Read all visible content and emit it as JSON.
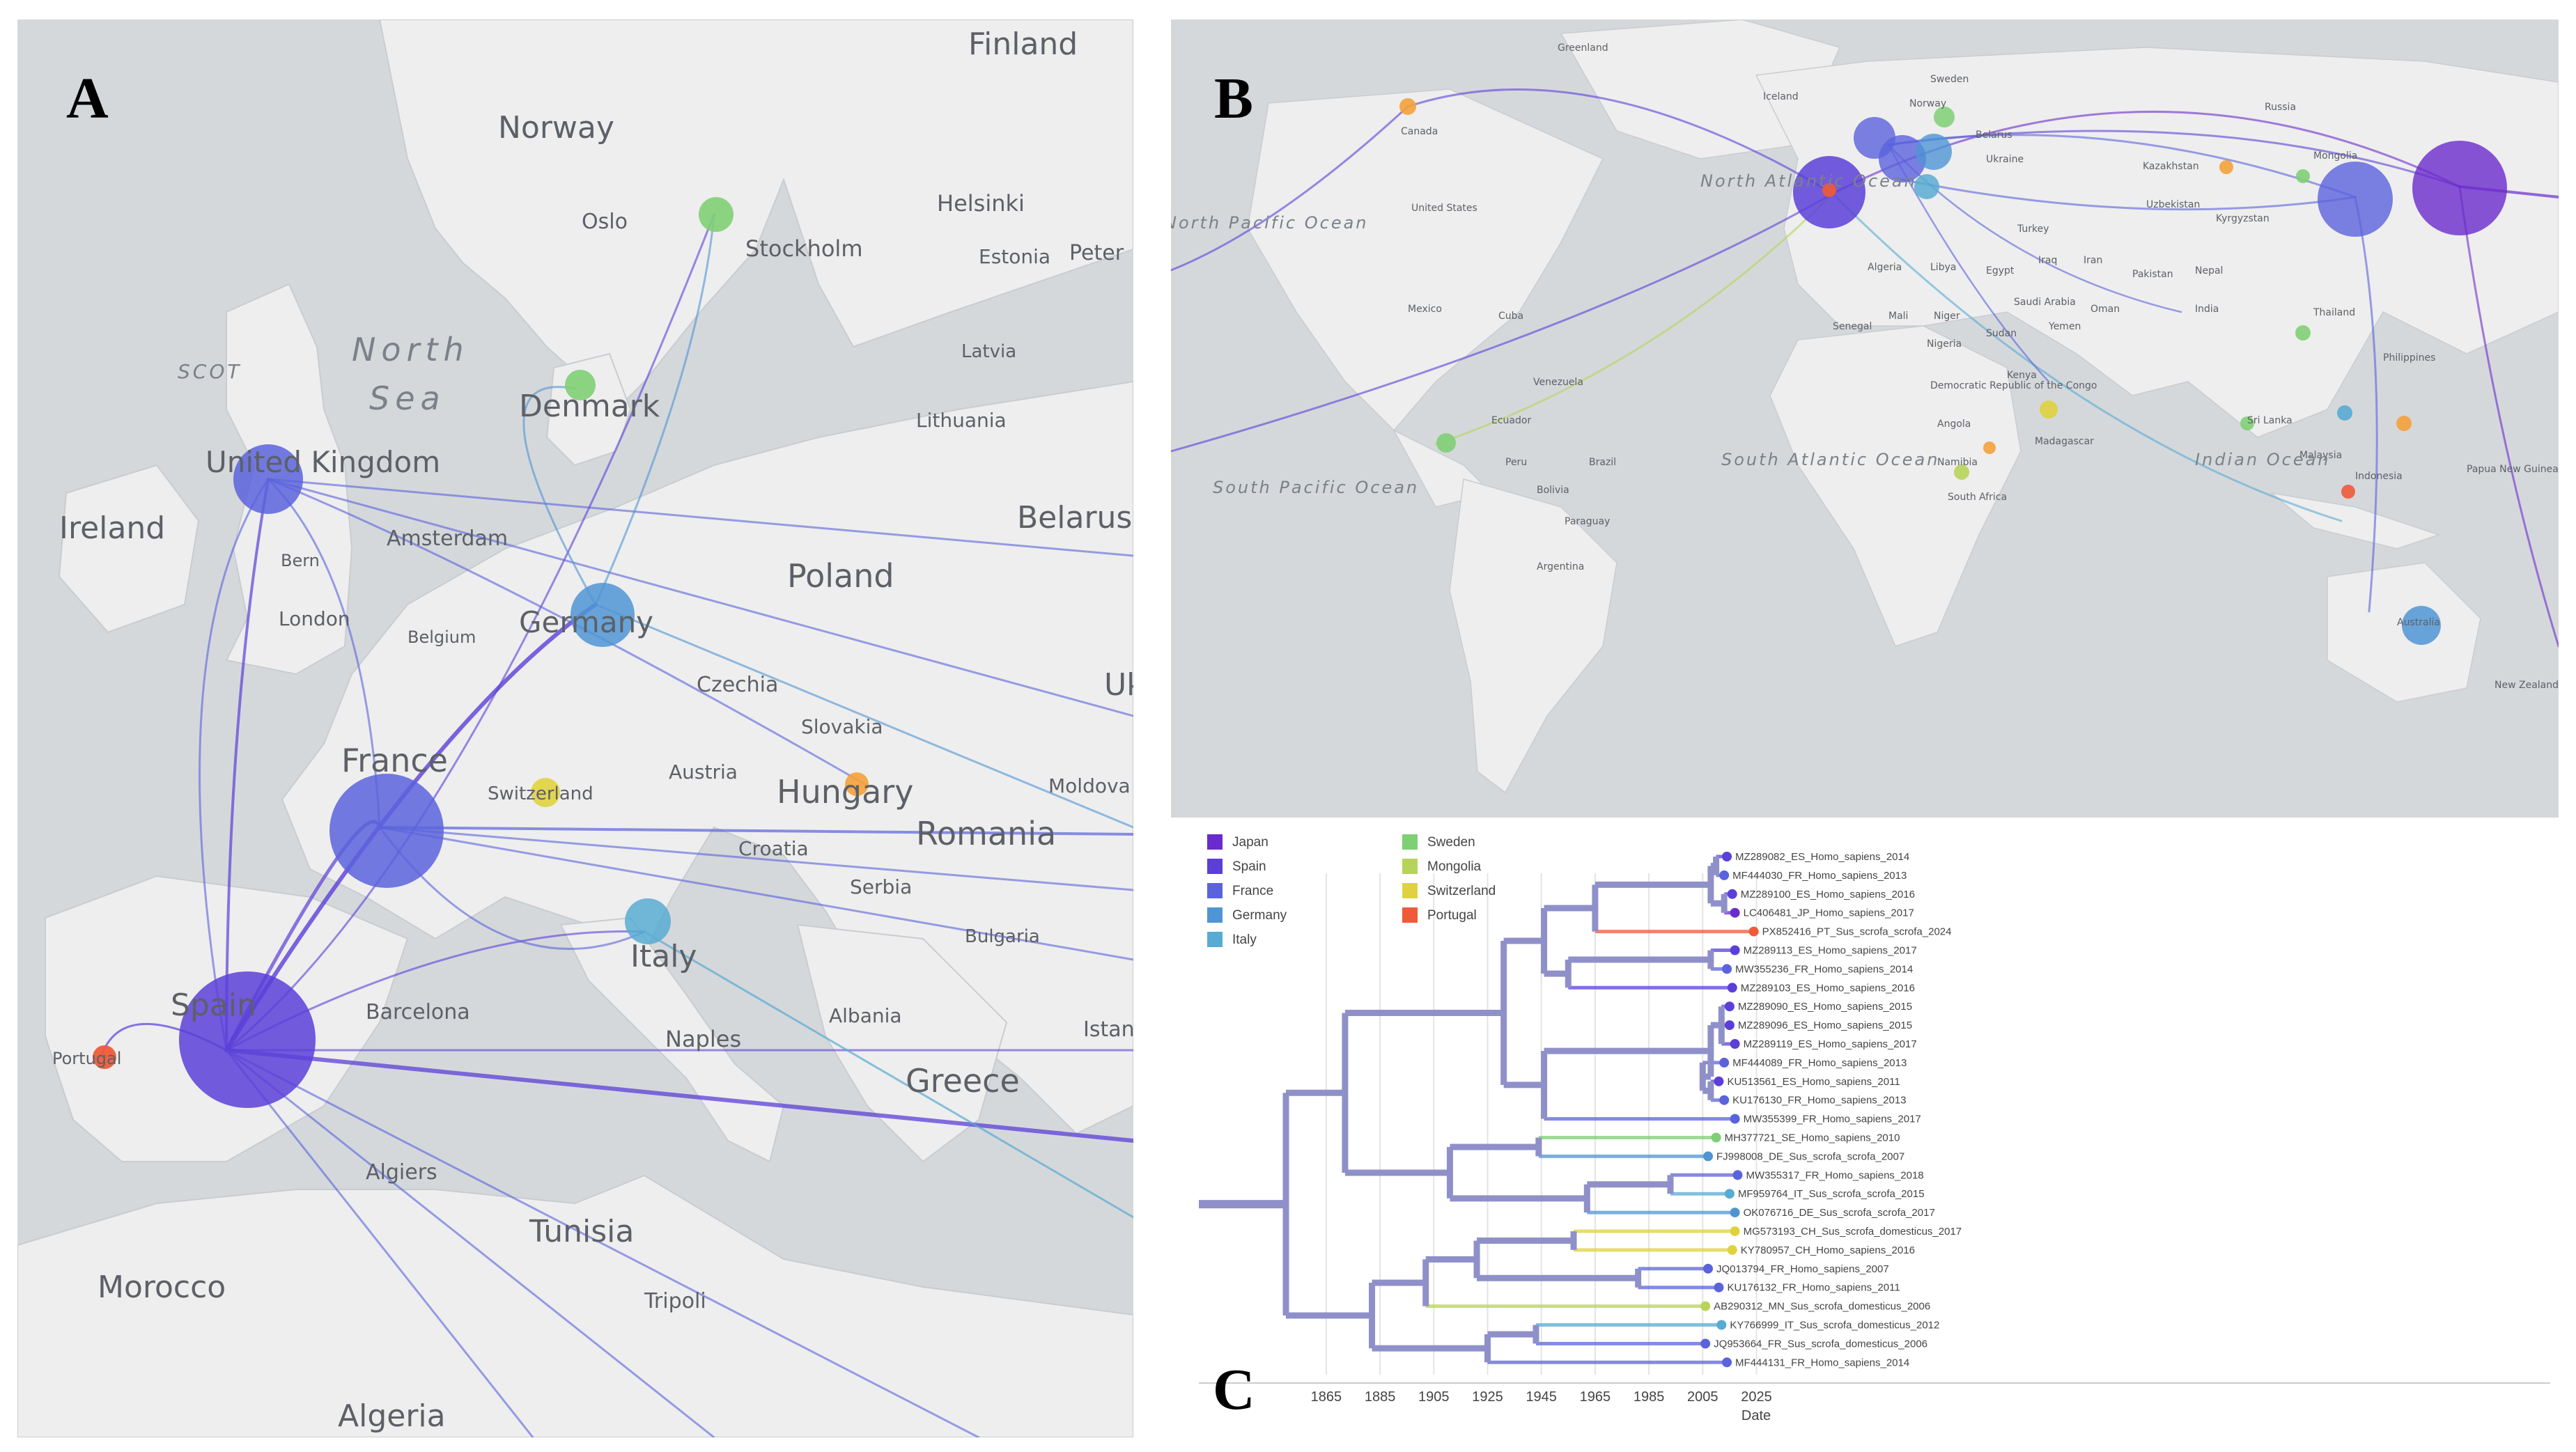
{
  "panels": {
    "a": {
      "letter": "A"
    },
    "b": {
      "letter": "B"
    },
    "c": {
      "letter": "C"
    }
  },
  "colors": {
    "Japan": "#6a2bcc",
    "Spain": "#5b3fd8",
    "France": "#5a63dc",
    "Germany": "#4f95d4",
    "Italy": "#58abd2",
    "Sweden": "#7fcf74",
    "Mongolia": "#b7d35a",
    "Switzerland": "#e0d23e",
    "Portugal": "#ee5a3a",
    "Hungary": "#f4a13a",
    "water": "#d5d8db",
    "land": "#eeeeee",
    "branch": "#8f90c9"
  },
  "map_a": {
    "countries": [
      "Finland",
      "Norway",
      "Denmark",
      "United Kingdom",
      "Ireland",
      "Poland",
      "Belarus",
      "Germany",
      "Czechia",
      "Slovakia",
      "France",
      "Austria",
      "Hungary",
      "Moldova",
      "Romania",
      "Switzerland",
      "Croatia",
      "Serbia",
      "Italy",
      "Bulgaria",
      "Albania",
      "Spain",
      "Portugal",
      "Greece",
      "Tunisia",
      "Morocco",
      "Algeria",
      "Estonia",
      "Latvia",
      "Lithuania",
      "Uk"
    ],
    "cities": [
      "Oslo",
      "Helsinki",
      "Stockholm",
      "Peter",
      "Amsterdam",
      "London",
      "Belgium",
      "Barcelona",
      "Naples",
      "Algiers",
      "Tripoli",
      "Istanbul",
      "Bern"
    ],
    "seas": [
      "North",
      "Sea",
      "SCOT"
    ]
  },
  "map_b": {
    "countries": [
      "Greenland",
      "Iceland",
      "Sweden",
      "Norway",
      "Russia",
      "Belarus",
      "Ukraine",
      "Kazakhstan",
      "Mongolia",
      "Uzbekistan",
      "Kyrgyzstan",
      "Turkey",
      "Iraq",
      "Iran",
      "Pakistan",
      "Nepal",
      "India",
      "Thailand",
      "Philippines",
      "Sri Lanka",
      "Malaysia",
      "Indonesia",
      "Papua New Guinea",
      "Australia",
      "New Zealand",
      "Canada",
      "United States",
      "Mexico",
      "Cuba",
      "Venezuela",
      "Ecuador",
      "Peru",
      "Brazil",
      "Bolivia",
      "Paraguay",
      "Argentina",
      "Algeria",
      "Libya",
      "Egypt",
      "Saudi Arabia",
      "Oman",
      "Yemen",
      "Sudan",
      "Niger",
      "Mali",
      "Senegal",
      "Nigeria",
      "Democratic Republic of the Congo",
      "Angola",
      "Namibia",
      "South Africa",
      "Kenya",
      "Madagascar"
    ],
    "oceans": [
      "North Atlantic Ocean",
      "South Atlantic Ocean",
      "Indian Ocean",
      "North Pacific Ocean",
      "South Pacific Ocean"
    ]
  },
  "tree": {
    "legend": [
      {
        "label": "Japan",
        "color": "#6a2bcc"
      },
      {
        "label": "Spain",
        "color": "#5b3fd8"
      },
      {
        "label": "France",
        "color": "#5a63dc"
      },
      {
        "label": "Germany",
        "color": "#4f95d4"
      },
      {
        "label": "Italy",
        "color": "#58abd2"
      },
      {
        "label": "Sweden",
        "color": "#7fcf74"
      },
      {
        "label": "Mongolia",
        "color": "#b7d35a"
      },
      {
        "label": "Switzerland",
        "color": "#e0d23e"
      },
      {
        "label": "Portugal",
        "color": "#ee5a3a"
      }
    ],
    "axis": {
      "label": "Date",
      "ticks": [
        1865,
        1885,
        1905,
        1925,
        1945,
        1965,
        1985,
        2005,
        2025
      ]
    },
    "tips": [
      {
        "label": "MZ289082_ES_Homo_sapiens_2014",
        "year": 2014,
        "color": "#5b3fd8"
      },
      {
        "label": "MF444030_FR_Homo_sapiens_2013",
        "year": 2013,
        "color": "#5a63dc"
      },
      {
        "label": "MZ289100_ES_Homo_sapiens_2016",
        "year": 2016,
        "color": "#5b3fd8"
      },
      {
        "label": "LC406481_JP_Homo_sapiens_2017",
        "year": 2017,
        "color": "#6a2bcc"
      },
      {
        "label": "PX852416_PT_Sus_scrofa_scrofa_2024",
        "year": 2024,
        "color": "#ee5a3a"
      },
      {
        "label": "MZ289113_ES_Homo_sapiens_2017",
        "year": 2017,
        "color": "#5b3fd8"
      },
      {
        "label": "MW355236_FR_Homo_sapiens_2014",
        "year": 2014,
        "color": "#5a63dc"
      },
      {
        "label": "MZ289103_ES_Homo_sapiens_2016",
        "year": 2016,
        "color": "#5b3fd8"
      },
      {
        "label": "MZ289090_ES_Homo_sapiens_2015",
        "year": 2015,
        "color": "#5b3fd8"
      },
      {
        "label": "MZ289096_ES_Homo_sapiens_2015",
        "year": 2015,
        "color": "#5b3fd8"
      },
      {
        "label": "MZ289119_ES_Homo_sapiens_2017",
        "year": 2017,
        "color": "#5b3fd8"
      },
      {
        "label": "MF444089_FR_Homo_sapiens_2013",
        "year": 2013,
        "color": "#5a63dc"
      },
      {
        "label": "KU513561_ES_Homo_sapiens_2011",
        "year": 2011,
        "color": "#5b3fd8"
      },
      {
        "label": "KU176130_FR_Homo_sapiens_2013",
        "year": 2013,
        "color": "#5a63dc"
      },
      {
        "label": "MW355399_FR_Homo_sapiens_2017",
        "year": 2017,
        "color": "#5a63dc"
      },
      {
        "label": "MH377721_SE_Homo_sapiens_2010",
        "year": 2010,
        "color": "#7fcf74"
      },
      {
        "label": "FJ998008_DE_Sus_scrofa_scrofa_2007",
        "year": 2007,
        "color": "#4f95d4"
      },
      {
        "label": "MW355317_FR_Homo_sapiens_2018",
        "year": 2018,
        "color": "#5a63dc"
      },
      {
        "label": "MF959764_IT_Sus_scrofa_scrofa_2015",
        "year": 2015,
        "color": "#58abd2"
      },
      {
        "label": "OK076716_DE_Sus_scrofa_scrofa_2017",
        "year": 2017,
        "color": "#4f95d4"
      },
      {
        "label": "MG573193_CH_Sus_scrofa_domesticus_2017",
        "year": 2017,
        "color": "#e0d23e"
      },
      {
        "label": "KY780957_CH_Homo_sapiens_2016",
        "year": 2016,
        "color": "#e0d23e"
      },
      {
        "label": "JQ013794_FR_Homo_sapiens_2007",
        "year": 2007,
        "color": "#5a63dc"
      },
      {
        "label": "KU176132_FR_Homo_sapiens_2011",
        "year": 2011,
        "color": "#5a63dc"
      },
      {
        "label": "AB290312_MN_Sus_scrofa_domesticus_2006",
        "year": 2006,
        "color": "#b7d35a"
      },
      {
        "label": "KY766999_IT_Sus_scrofa_domesticus_2012",
        "year": 2012,
        "color": "#58abd2"
      },
      {
        "label": "JQ953664_FR_Sus_scrofa_domesticus_2006",
        "year": 2006,
        "color": "#5a63dc"
      },
      {
        "label": "MF444131_FR_Homo_sapiens_2014",
        "year": 2014,
        "color": "#5a63dc"
      }
    ]
  }
}
